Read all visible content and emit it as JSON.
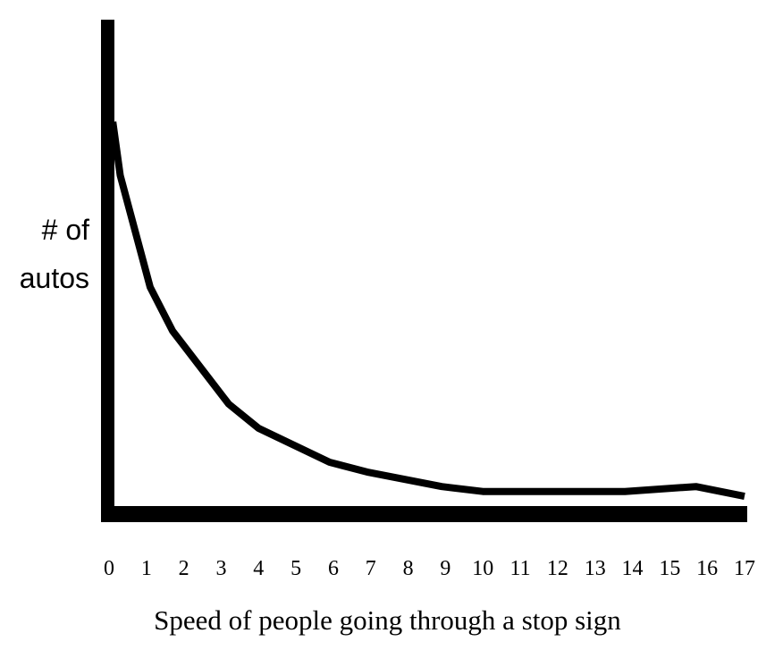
{
  "chart_data": {
    "type": "line",
    "title": "",
    "xlabel": "Speed of people going through a stop sign",
    "ylabel": "# of autos",
    "ylabel_lines": [
      "# of",
      "autos"
    ],
    "x_ticks": [
      "0",
      "1",
      "2",
      "3",
      "4",
      "5",
      "6",
      "7",
      "8",
      "9",
      "10",
      "11",
      "12",
      "13",
      "14",
      "15",
      "16",
      "17"
    ],
    "xlim": [
      0,
      17
    ],
    "ylim": [
      0,
      100
    ],
    "y_ticks": [],
    "grid": false,
    "legend": null,
    "series": [
      {
        "name": "# of autos",
        "color": "#000000",
        "x": [
          0.1,
          0.3,
          1.1,
          1.7,
          3.2,
          4.0,
          5.9,
          6.9,
          8.9,
          10.0,
          12.0,
          13.8,
          15.7,
          17.0
        ],
        "y": [
          79,
          68,
          45,
          36,
          21,
          16,
          9,
          7,
          4,
          3,
          3,
          3,
          4,
          2
        ]
      }
    ]
  },
  "axes": {
    "color": "#000000"
  }
}
